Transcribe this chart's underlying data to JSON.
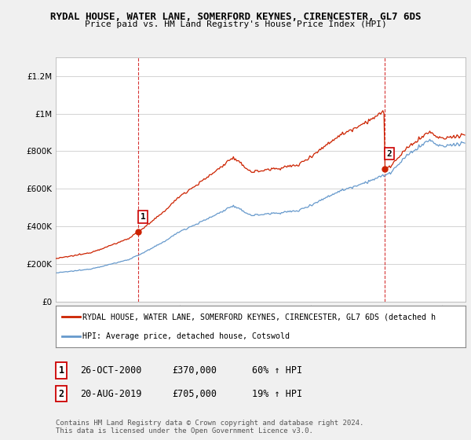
{
  "title": "RYDAL HOUSE, WATER LANE, SOMERFORD KEYNES, CIRENCESTER, GL7 6DS",
  "subtitle": "Price paid vs. HM Land Registry's House Price Index (HPI)",
  "legend_line1": "RYDAL HOUSE, WATER LANE, SOMERFORD KEYNES, CIRENCESTER, GL7 6DS (detached h",
  "legend_line2": "HPI: Average price, detached house, Cotswold",
  "transaction1_label": "1",
  "transaction1_date": "26-OCT-2000",
  "transaction1_price": "£370,000",
  "transaction1_pct": "60% ↑ HPI",
  "transaction2_label": "2",
  "transaction2_date": "20-AUG-2019",
  "transaction2_price": "£705,000",
  "transaction2_pct": "19% ↑ HPI",
  "footnote": "Contains HM Land Registry data © Crown copyright and database right 2024.\nThis data is licensed under the Open Government Licence v3.0.",
  "hpi_color": "#6699cc",
  "price_color": "#cc2200",
  "vline_color": "#cc0000",
  "background_color": "#f0f0f0",
  "plot_bg_color": "#ffffff",
  "ylim": [
    0,
    1300000
  ],
  "yticks": [
    0,
    200000,
    400000,
    600000,
    800000,
    1000000,
    1200000
  ],
  "xlim_start": 1994.5,
  "xlim_end": 2025.8,
  "transaction1_x": 2000.82,
  "transaction1_y": 370000,
  "transaction2_x": 2019.64,
  "transaction2_y": 705000,
  "hpi_base_1995": 155000,
  "hpi_base_noise_scale": 0.006
}
